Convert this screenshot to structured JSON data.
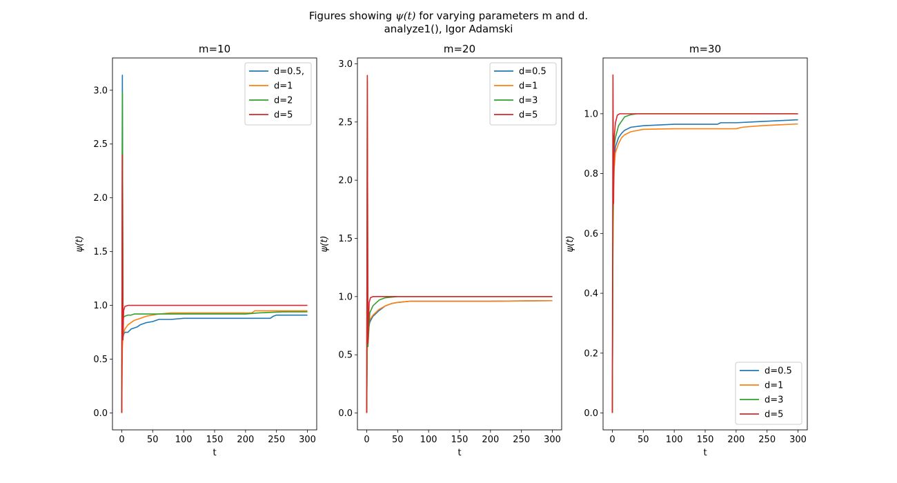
{
  "figure": {
    "title_prefix": "Figures showing ",
    "title_symbol": "ψ(t)",
    "title_suffix": " for varying parameters m and d.",
    "subtitle": "analyze1(), Igor Adamski"
  },
  "chart_data": [
    {
      "type": "line",
      "title": "m=10",
      "xlabel": "t",
      "ylabel": "ψ(t)",
      "xlim": [
        -15,
        315
      ],
      "ylim": [
        -0.157,
        3.3
      ],
      "xticks": [
        0,
        50,
        100,
        150,
        200,
        250,
        300
      ],
      "yticks": [
        0.0,
        0.5,
        1.0,
        1.5,
        2.0,
        2.5,
        3.0
      ],
      "ytick_labels": [
        "0.0",
        "0.5",
        "1.0",
        "1.5",
        "2.0",
        "2.5",
        "3.0"
      ],
      "legend_position": "upper right",
      "grid": false,
      "series": [
        {
          "name": "d=0.5,",
          "color": "#1f77b4",
          "x": [
            0,
            1,
            2,
            3,
            5,
            10,
            15,
            20,
            25,
            30,
            40,
            50,
            60,
            80,
            100,
            120,
            150,
            200,
            240,
            245,
            250,
            300
          ],
          "y": [
            0.0,
            3.14,
            0.7,
            0.73,
            0.75,
            0.75,
            0.78,
            0.79,
            0.8,
            0.82,
            0.84,
            0.85,
            0.87,
            0.87,
            0.88,
            0.88,
            0.88,
            0.88,
            0.88,
            0.9,
            0.91,
            0.91
          ]
        },
        {
          "name": "d=1",
          "color": "#ff7f0e",
          "x": [
            0,
            1,
            2,
            5,
            10,
            15,
            20,
            30,
            40,
            50,
            60,
            80,
            100,
            150,
            210,
            215,
            300
          ],
          "y": [
            0.0,
            0.6,
            0.72,
            0.78,
            0.82,
            0.84,
            0.86,
            0.88,
            0.9,
            0.91,
            0.92,
            0.93,
            0.93,
            0.93,
            0.93,
            0.95,
            0.95
          ]
        },
        {
          "name": "d=2",
          "color": "#2ca02c",
          "x": [
            0,
            1,
            2,
            3,
            5,
            10,
            15,
            20,
            30,
            50,
            100,
            150,
            200,
            220,
            260,
            300
          ],
          "y": [
            0.0,
            2.98,
            0.88,
            0.89,
            0.9,
            0.91,
            0.91,
            0.92,
            0.92,
            0.92,
            0.92,
            0.92,
            0.92,
            0.93,
            0.94,
            0.94
          ]
        },
        {
          "name": "d=5",
          "color": "#d62728",
          "x": [
            0,
            1,
            2,
            3,
            5,
            10,
            300
          ],
          "y": [
            0.0,
            2.4,
            0.68,
            0.95,
            0.99,
            1.0,
            1.0
          ]
        }
      ]
    },
    {
      "type": "line",
      "title": "m=20",
      "xlabel": "t",
      "ylabel": "ψ(t)",
      "xlim": [
        -15,
        315
      ],
      "ylim": [
        -0.145,
        3.05
      ],
      "xticks": [
        0,
        50,
        100,
        150,
        200,
        250,
        300
      ],
      "yticks": [
        0.0,
        0.5,
        1.0,
        1.5,
        2.0,
        2.5,
        3.0
      ],
      "ytick_labels": [
        "0.0",
        "0.5",
        "1.0",
        "1.5",
        "2.0",
        "2.5",
        "3.0"
      ],
      "legend_position": "upper right",
      "grid": false,
      "series": [
        {
          "name": "d=0.5",
          "color": "#1f77b4",
          "x": [
            0,
            1,
            2,
            5,
            10,
            20,
            30,
            40,
            50,
            70,
            100,
            150,
            200,
            300
          ],
          "y": [
            0.0,
            0.6,
            0.7,
            0.78,
            0.83,
            0.88,
            0.92,
            0.94,
            0.95,
            0.96,
            0.96,
            0.96,
            0.96,
            0.965
          ]
        },
        {
          "name": "d=1",
          "color": "#ff7f0e",
          "x": [
            0,
            1,
            2,
            5,
            10,
            20,
            30,
            40,
            50,
            70,
            100,
            150,
            200,
            300
          ],
          "y": [
            0.0,
            0.65,
            0.74,
            0.8,
            0.84,
            0.89,
            0.92,
            0.94,
            0.95,
            0.96,
            0.96,
            0.96,
            0.96,
            0.965
          ]
        },
        {
          "name": "d=3",
          "color": "#2ca02c",
          "x": [
            0,
            1,
            2,
            5,
            10,
            20,
            30,
            40,
            50,
            100,
            300
          ],
          "y": [
            0.0,
            2.85,
            0.57,
            0.86,
            0.92,
            0.97,
            0.99,
            0.995,
            1.0,
            1.0,
            1.0
          ]
        },
        {
          "name": "d=5",
          "color": "#d62728",
          "x": [
            0,
            1,
            2,
            4,
            6,
            10,
            300
          ],
          "y": [
            0.0,
            2.9,
            0.6,
            0.95,
            0.99,
            1.0,
            1.0
          ]
        }
      ]
    },
    {
      "type": "line",
      "title": "m=30",
      "xlabel": "t",
      "ylabel": "ψ(t)",
      "xlim": [
        -15,
        315
      ],
      "ylim": [
        -0.0565,
        1.1865
      ],
      "xticks": [
        0,
        50,
        100,
        150,
        200,
        250,
        300
      ],
      "yticks": [
        0.0,
        0.2,
        0.4,
        0.6,
        0.8,
        1.0
      ],
      "ytick_labels": [
        "0.0",
        "0.2",
        "0.4",
        "0.6",
        "0.8",
        "1.0"
      ],
      "legend_position": "lower right",
      "grid": false,
      "series": [
        {
          "name": "d=0.5",
          "color": "#1f77b4",
          "x": [
            0,
            1,
            2,
            3,
            5,
            10,
            15,
            20,
            30,
            50,
            100,
            170,
            175,
            200,
            230,
            250,
            300
          ],
          "y": [
            0.0,
            0.6,
            0.78,
            0.85,
            0.89,
            0.92,
            0.935,
            0.945,
            0.955,
            0.96,
            0.965,
            0.965,
            0.97,
            0.97,
            0.973,
            0.975,
            0.98
          ]
        },
        {
          "name": "d=1",
          "color": "#ff7f0e",
          "x": [
            0,
            1,
            2,
            3,
            5,
            10,
            15,
            20,
            30,
            50,
            100,
            200,
            210,
            240,
            260,
            300
          ],
          "y": [
            0.0,
            0.55,
            0.75,
            0.82,
            0.87,
            0.9,
            0.92,
            0.93,
            0.94,
            0.948,
            0.95,
            0.95,
            0.955,
            0.96,
            0.962,
            0.966
          ]
        },
        {
          "name": "d=3",
          "color": "#2ca02c",
          "x": [
            0,
            1,
            2,
            3,
            5,
            10,
            20,
            30,
            40,
            60,
            300
          ],
          "y": [
            0.0,
            0.62,
            0.85,
            0.89,
            0.92,
            0.96,
            0.99,
            0.997,
            1.0,
            1.0,
            1.0
          ]
        },
        {
          "name": "d=5",
          "color": "#d62728",
          "x": [
            0,
            1,
            2,
            3,
            5,
            8,
            12,
            300
          ],
          "y": [
            0.0,
            1.13,
            0.7,
            0.92,
            0.97,
            0.995,
            1.0,
            1.0
          ]
        }
      ]
    }
  ]
}
